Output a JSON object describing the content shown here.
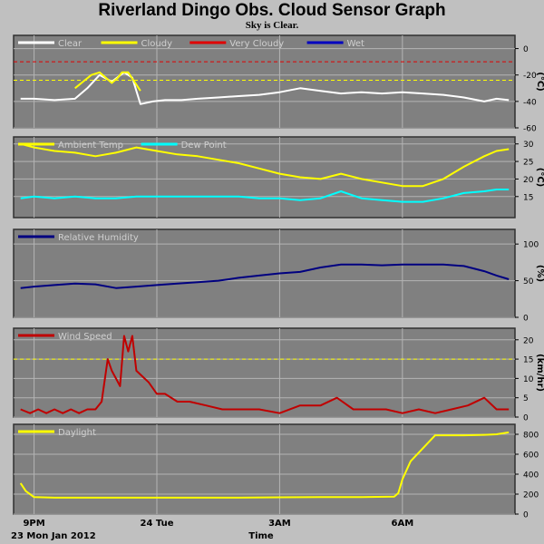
{
  "header": {
    "title": "Riverland Dingo Obs. Cloud Sensor Graph",
    "subtitle": "Sky is Clear."
  },
  "footer": {
    "date_label": "23 Mon Jan 2012",
    "time_label": "Time"
  },
  "colors": {
    "panel": "#808080",
    "grid": "#b4b4b4",
    "border": "#303030",
    "clear": "#ffffff",
    "cloudy": "#ffff00",
    "very_cloudy": "#e00000",
    "wet": "#0000c0",
    "ambient": "#ffff00",
    "dew": "#00ffff",
    "humidity": "#000080",
    "wind": "#c00000",
    "daylight": "#ffff00"
  },
  "chart_data": [
    {
      "id": "cloud",
      "type": "line",
      "ylabel": "(°C)",
      "ylim": [
        -60,
        10
      ],
      "yticks": [
        0,
        -20,
        -40,
        -60
      ],
      "threshold_lines": [
        {
          "value": -10,
          "color": "#e00000"
        },
        {
          "value": -24,
          "color": "#ffff00"
        }
      ],
      "legend": [
        {
          "name": "Clear",
          "color": "#ffffff"
        },
        {
          "name": "Cloudy",
          "color": "#ffff00"
        },
        {
          "name": "Very Cloudy",
          "color": "#e00000"
        },
        {
          "name": "Wet",
          "color": "#0000c0"
        }
      ],
      "series": [
        {
          "name": "Clear",
          "color": "#ffffff",
          "x": [
            20.67,
            21.0,
            21.5,
            22.0,
            22.3,
            22.6,
            22.9,
            23.2,
            23.4,
            23.6,
            23.9,
            24.2,
            24.6,
            25.0,
            25.5,
            26.0,
            26.5,
            27.0,
            27.5,
            28.0,
            28.5,
            29.0,
            29.5,
            30.0,
            30.5,
            31.0,
            31.5,
            32.0,
            32.3,
            32.6
          ],
          "y": [
            -38,
            -38,
            -39,
            -38,
            -30,
            -20,
            -25,
            -18,
            -22,
            -42,
            -40,
            -39,
            -39,
            -38,
            -37,
            -36,
            -35,
            -33,
            -30,
            -32,
            -34,
            -33,
            -34,
            -33,
            -34,
            -35,
            -37,
            -40,
            -38,
            -39
          ]
        },
        {
          "name": "Cloudy",
          "color": "#ffff00",
          "x": [
            22.0,
            22.2,
            22.4,
            22.6,
            22.75,
            22.9,
            23.05,
            23.15,
            23.3,
            23.45,
            23.6
          ],
          "y": [
            -30,
            -25,
            -20,
            -18,
            -22,
            -26,
            -22,
            -18,
            -18,
            -25,
            -32
          ]
        }
      ]
    },
    {
      "id": "temp",
      "type": "line",
      "ylabel": "(°C)",
      "ylim": [
        9,
        32
      ],
      "yticks": [
        30,
        25,
        20,
        15
      ],
      "legend": [
        {
          "name": "Ambient Temp",
          "color": "#ffff00"
        },
        {
          "name": "Dew Point",
          "color": "#00ffff"
        }
      ],
      "series": [
        {
          "name": "Ambient Temp",
          "color": "#ffff00",
          "x": [
            20.67,
            21.0,
            21.5,
            22.0,
            22.5,
            23.0,
            23.5,
            24.0,
            24.5,
            25.0,
            25.5,
            26.0,
            26.5,
            27.0,
            27.5,
            28.0,
            28.5,
            29.0,
            29.5,
            30.0,
            30.5,
            31.0,
            31.5,
            32.0,
            32.3,
            32.6
          ],
          "y": [
            30,
            29,
            28,
            27.5,
            26.5,
            27.5,
            29,
            28,
            27,
            26.5,
            25.5,
            24.5,
            23,
            21.5,
            20.5,
            20,
            21.5,
            20,
            19,
            18,
            18,
            20,
            23.5,
            26.5,
            28,
            28.5
          ]
        },
        {
          "name": "Dew Point",
          "color": "#00ffff",
          "x": [
            20.67,
            21.0,
            21.5,
            22.0,
            22.5,
            23.0,
            23.5,
            24.0,
            24.5,
            25.0,
            25.5,
            26.0,
            26.5,
            27.0,
            27.5,
            28.0,
            28.5,
            29.0,
            29.5,
            30.0,
            30.5,
            31.0,
            31.5,
            32.0,
            32.3,
            32.6
          ],
          "y": [
            14.5,
            15,
            14.5,
            15,
            14.5,
            14.5,
            15,
            15,
            15,
            15,
            15,
            15,
            14.5,
            14.5,
            14,
            14.5,
            16.5,
            14.5,
            14,
            13.5,
            13.5,
            14.5,
            16,
            16.5,
            17,
            17
          ]
        }
      ]
    },
    {
      "id": "humidity",
      "type": "line",
      "ylabel": "(%)",
      "ylim": [
        0,
        120
      ],
      "yticks": [
        100,
        50,
        0
      ],
      "legend": [
        {
          "name": "Relative Humidity",
          "color": "#000080"
        }
      ],
      "series": [
        {
          "name": "Relative Humidity",
          "color": "#000080",
          "x": [
            20.67,
            21.0,
            21.5,
            22.0,
            22.5,
            23.0,
            23.5,
            24.0,
            24.5,
            25.0,
            25.5,
            26.0,
            26.5,
            27.0,
            27.5,
            28.0,
            28.5,
            29.0,
            29.5,
            30.0,
            30.5,
            31.0,
            31.5,
            32.0,
            32.3,
            32.6
          ],
          "y": [
            40,
            42,
            44,
            46,
            45,
            40,
            42,
            44,
            46,
            48,
            50,
            54,
            57,
            60,
            62,
            68,
            72,
            72,
            71,
            72,
            72,
            72,
            70,
            63,
            57,
            52
          ]
        }
      ]
    },
    {
      "id": "wind",
      "type": "line",
      "ylabel": "(km/hr)",
      "ylim": [
        0,
        23
      ],
      "yticks": [
        20,
        15,
        10,
        5,
        0
      ],
      "threshold_lines": [
        {
          "value": 15,
          "color": "#ffff00"
        }
      ],
      "legend": [
        {
          "name": "Wind Speed",
          "color": "#c00000"
        }
      ],
      "series": [
        {
          "name": "Wind Speed",
          "color": "#c00000",
          "x": [
            20.67,
            20.9,
            21.1,
            21.3,
            21.5,
            21.7,
            21.9,
            22.1,
            22.3,
            22.5,
            22.65,
            22.8,
            22.9,
            23.0,
            23.1,
            23.2,
            23.3,
            23.4,
            23.5,
            23.6,
            23.8,
            24.0,
            24.2,
            24.5,
            24.8,
            25.2,
            25.6,
            26.0,
            26.5,
            27.0,
            27.5,
            28.0,
            28.4,
            28.8,
            29.2,
            29.6,
            30.0,
            30.4,
            30.8,
            31.2,
            31.6,
            32.0,
            32.3,
            32.6
          ],
          "y": [
            2,
            1,
            2,
            1,
            2,
            1,
            2,
            1,
            2,
            2,
            4,
            15,
            12,
            10,
            8,
            21,
            17,
            21,
            12,
            11,
            9,
            6,
            6,
            4,
            4,
            3,
            2,
            2,
            2,
            1,
            3,
            3,
            5,
            2,
            2,
            2,
            1,
            2,
            1,
            2,
            3,
            5,
            2,
            2
          ]
        }
      ]
    },
    {
      "id": "daylight",
      "type": "line",
      "ylabel": "",
      "ylim": [
        0,
        900
      ],
      "yticks": [
        800,
        600,
        400,
        200,
        0
      ],
      "legend": [
        {
          "name": "Daylight",
          "color": "#ffff00"
        }
      ],
      "series": [
        {
          "name": "Daylight",
          "color": "#ffff00",
          "x": [
            20.67,
            20.8,
            21.0,
            21.5,
            22.0,
            23.0,
            24.0,
            25.0,
            26.0,
            27.0,
            28.0,
            29.0,
            29.8,
            29.9,
            30.0,
            30.2,
            30.5,
            30.8,
            31.1,
            31.5,
            32.0,
            32.3,
            32.6
          ],
          "y": [
            310,
            230,
            170,
            165,
            165,
            165,
            165,
            165,
            165,
            168,
            170,
            170,
            175,
            210,
            350,
            530,
            660,
            790,
            790,
            790,
            795,
            800,
            820
          ]
        }
      ]
    }
  ],
  "x_axis": {
    "range": [
      20.5,
      32.75
    ],
    "ticks": [
      {
        "value": 21,
        "label": "9PM"
      },
      {
        "value": 24,
        "label": "24 Tue"
      },
      {
        "value": 27,
        "label": "3AM"
      },
      {
        "value": 30,
        "label": "6AM"
      }
    ]
  }
}
